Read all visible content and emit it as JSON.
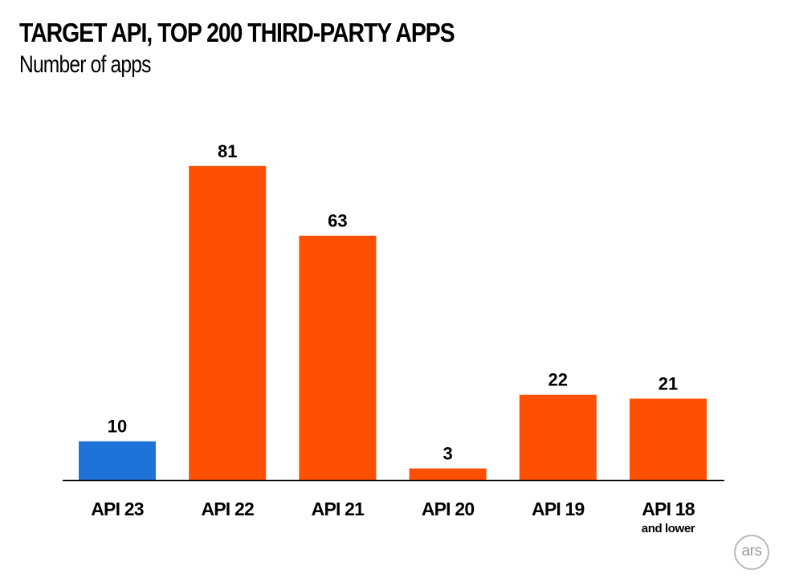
{
  "colors": {
    "highlight": "#1f73d8",
    "bars": "#fe5000",
    "axis": "#000000",
    "logo": "#a0a0a0"
  },
  "chart_data": {
    "type": "bar",
    "title": "TARGET API, TOP 200 THIRD-PARTY APPS",
    "subtitle": "Number of apps",
    "categories": [
      "API 23",
      "API 22",
      "API 21",
      "API 20",
      "API 19",
      "API 18"
    ],
    "category_sublabels": [
      "",
      "",
      "",
      "",
      "",
      "and lower"
    ],
    "values": [
      10,
      81,
      63,
      3,
      22,
      21
    ],
    "highlighted_index": 0,
    "ylim": [
      0,
      85
    ],
    "grid": false,
    "legend": "none"
  },
  "logo": {
    "text": "ars"
  }
}
